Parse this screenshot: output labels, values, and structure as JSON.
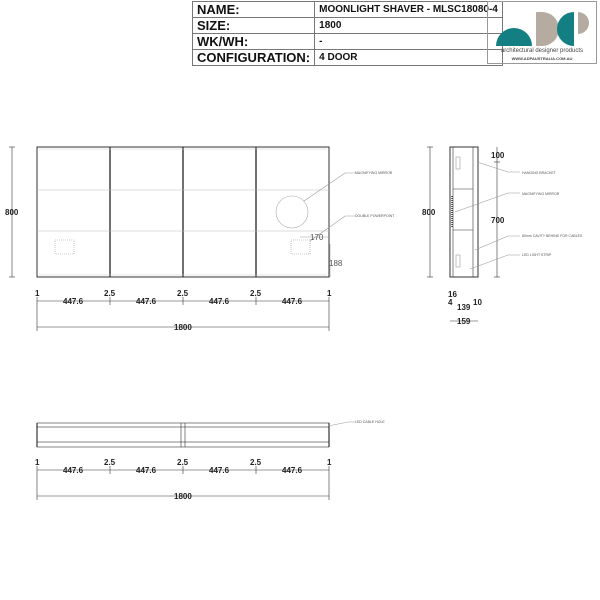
{
  "spec_table": [
    {
      "label": "NAME:",
      "value": "MOONLIGHT SHAVER - MLSC18080-4"
    },
    {
      "label": "SIZE:",
      "value": "1800"
    },
    {
      "label": "WK/WH:",
      "value": "-"
    },
    {
      "label": "CONFIGURATION:",
      "value": "4 DOOR"
    }
  ],
  "logo": {
    "name": "architectural designer products",
    "url": "WWW.ADPAUSTRALIA.COM.AU",
    "colors": {
      "teal": "#137f82",
      "taupe": "#b5aba0"
    }
  },
  "front_view": {
    "height": "800",
    "top_dims": [
      "1",
      "2.5",
      "2.5",
      "2.5",
      "1"
    ],
    "door_widths": [
      "447.6",
      "447.6",
      "447.6",
      "447.6"
    ],
    "total_width": "1800",
    "powerpoint_offset": "170",
    "powerpoint_height": "188",
    "callouts": [
      "MAGNIFYING MIRROR",
      "DOUBLE POWERPOINT"
    ]
  },
  "side_view": {
    "height": "800",
    "bracket_dim": "100",
    "inner_height": "700",
    "depth_dims": {
      "front": "16",
      "gap": "4",
      "body": "139",
      "back": "10",
      "total": "159"
    },
    "callouts": [
      "HANGING BRACKET",
      "MAGNIFYING MIRROR",
      "80mm CAVITY BEHIND FOR CABLES",
      "LED LIGHT STRIP"
    ]
  },
  "plan_view": {
    "top_dims": [
      "1",
      "2.5",
      "2.5",
      "2.5",
      "1"
    ],
    "door_widths": [
      "447.6",
      "447.6",
      "447.6",
      "447.6"
    ],
    "total_width": "1800",
    "callouts": [
      "LED CABLE HOLE"
    ]
  }
}
